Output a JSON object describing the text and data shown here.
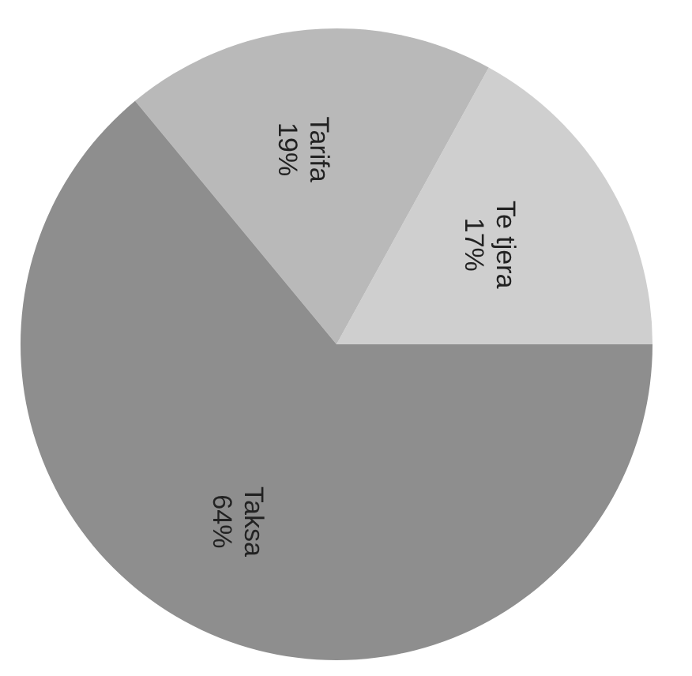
{
  "chart_data": {
    "type": "pie",
    "categories": [
      "Te tjera",
      "Tarifa",
      "Taksa"
    ],
    "values": [
      17,
      19,
      64
    ],
    "colors": [
      "#cfcfcf",
      "#b9b9b9",
      "#8e8e8e"
    ],
    "value_labels": [
      "17%",
      "19%",
      "64%"
    ]
  }
}
